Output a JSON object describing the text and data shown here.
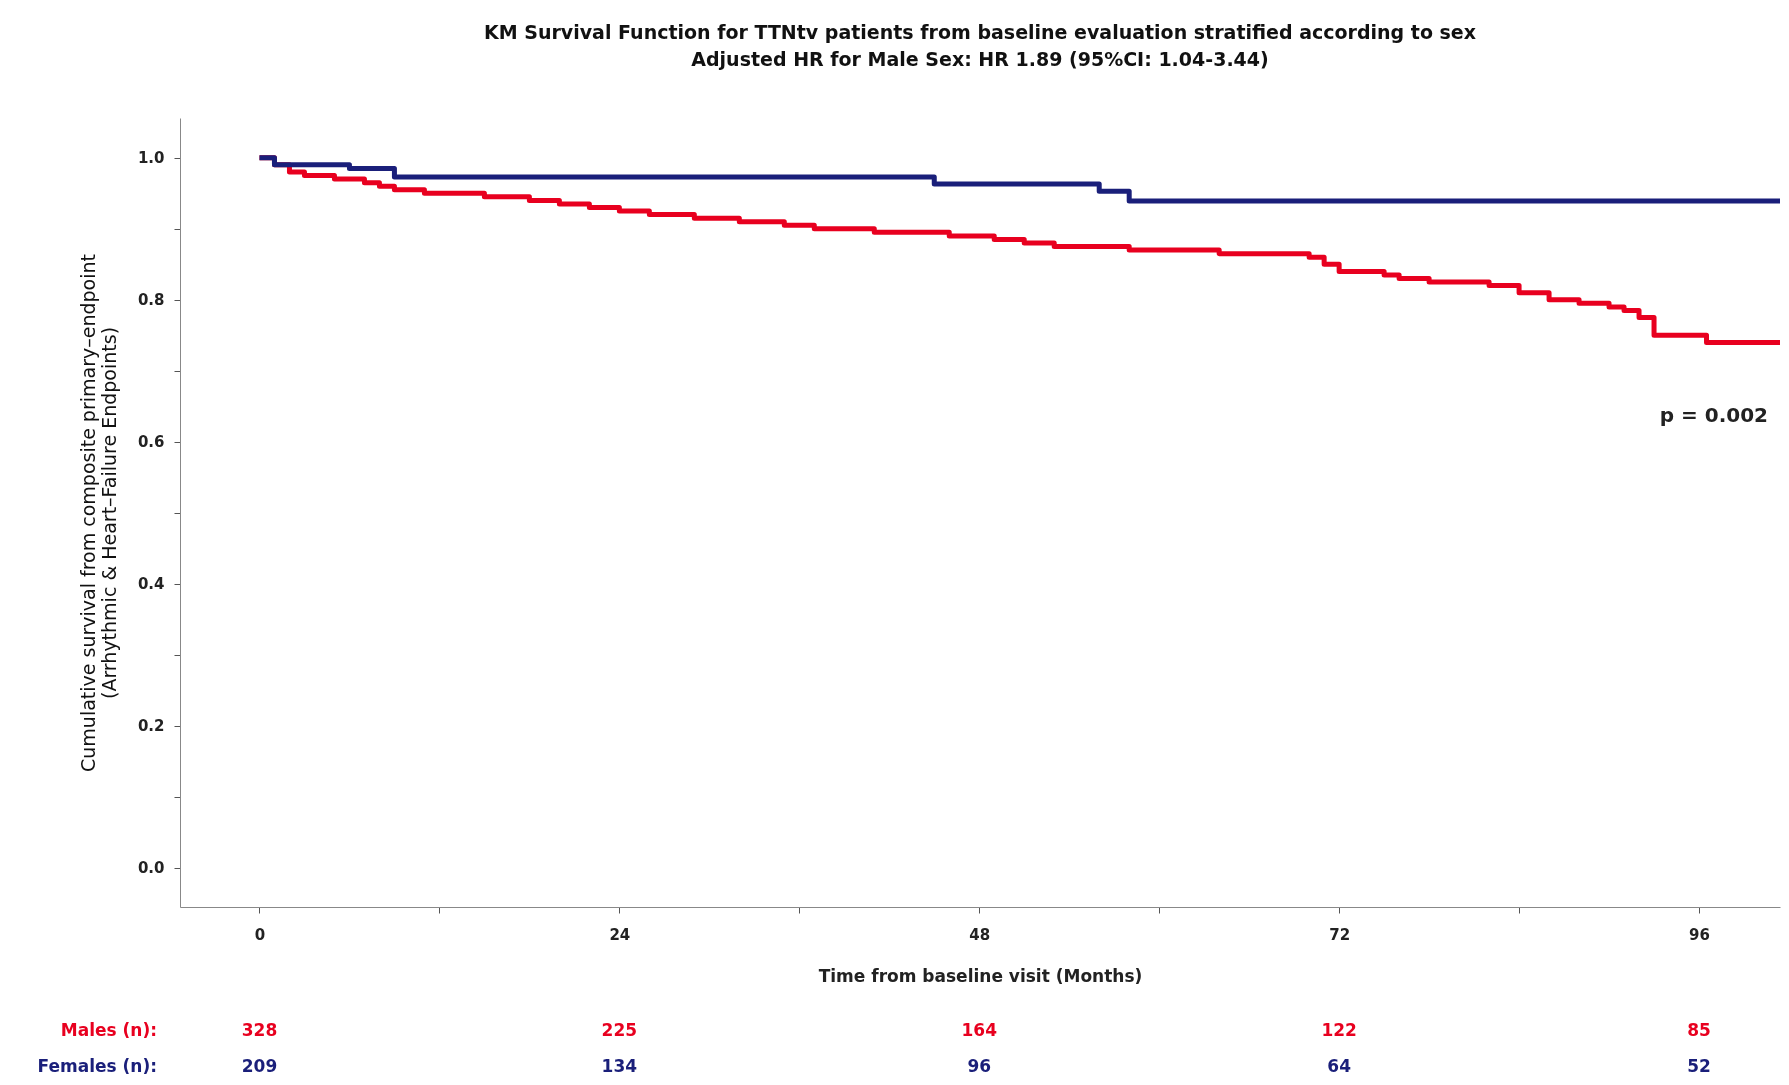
{
  "chart_data": {
    "type": "step",
    "title": "KM Survival Function for TTNtv patients from baseline evaluation stratified according to sex",
    "subtitle": "Adjusted HR for Male Sex: HR 1.89 (95%CI: 1.04-3.44)",
    "xlabel": "Time from baseline visit (Months)",
    "ylabel": "Cumulative survival from composite primary–endpoint\n(Arrhythmic & Heart–Failure Endpoints)",
    "xlim": [
      -5.3,
      101.4
    ],
    "ylim": [
      -0.055,
      1.056
    ],
    "xticks": [
      0,
      {
        "value": 12,
        "label": null
      },
      24,
      {
        "value": 36,
        "label": null
      },
      48,
      {
        "value": 60,
        "label": null
      },
      72,
      {
        "value": 84,
        "label": null
      },
      96
    ],
    "yticks": [
      {
        "value": 0,
        "label": "0.0"
      },
      {
        "value": 0.1,
        "label": null
      },
      {
        "value": 0.2,
        "label": "0.2"
      },
      {
        "value": 0.3,
        "label": null
      },
      {
        "value": 0.4,
        "label": "0.4"
      },
      {
        "value": 0.5,
        "label": null
      },
      {
        "value": 0.6,
        "label": "0.6"
      },
      {
        "value": 0.7,
        "label": null
      },
      {
        "value": 0.8,
        "label": "0.8"
      },
      {
        "value": 0.9,
        "label": null
      },
      {
        "value": 1,
        "label": "1.0"
      }
    ],
    "grid": false,
    "legend": false,
    "marker": "none",
    "line_style": "solid",
    "series": [
      {
        "color": "#e8001f",
        "x": [
          0,
          1,
          2,
          3,
          5,
          7,
          8,
          9,
          11,
          15,
          18,
          20,
          22,
          24,
          26,
          29,
          32,
          35,
          37,
          41,
          46,
          49,
          51,
          53,
          58,
          64,
          70,
          71,
          72,
          75,
          76,
          78,
          82,
          84,
          86,
          88,
          90,
          91,
          92,
          93,
          96.5,
          101.4
        ],
        "values": [
          1.0,
          0.99,
          0.98,
          0.975,
          0.97,
          0.965,
          0.96,
          0.955,
          0.95,
          0.945,
          0.94,
          0.935,
          0.93,
          0.925,
          0.92,
          0.915,
          0.91,
          0.905,
          0.9,
          0.895,
          0.89,
          0.885,
          0.88,
          0.875,
          0.87,
          0.865,
          0.86,
          0.85,
          0.84,
          0.835,
          0.83,
          0.825,
          0.82,
          0.81,
          0.8,
          0.795,
          0.79,
          0.785,
          0.775,
          0.75,
          0.74,
          0.74
        ]
      },
      {
        "color": "#1a1f7a",
        "x": [
          0,
          1,
          6,
          9,
          45,
          56,
          58,
          101.4
        ],
        "values": [
          1.0,
          0.99,
          0.985,
          0.973,
          0.963,
          0.953,
          0.939,
          0.939
        ]
      }
    ],
    "annotations": [
      "p = 0.002",
      "Males (n):",
      "328",
      "225",
      "164",
      "122",
      "85",
      "Females (n):",
      "209",
      "134",
      "96",
      "64",
      "52"
    ]
  }
}
